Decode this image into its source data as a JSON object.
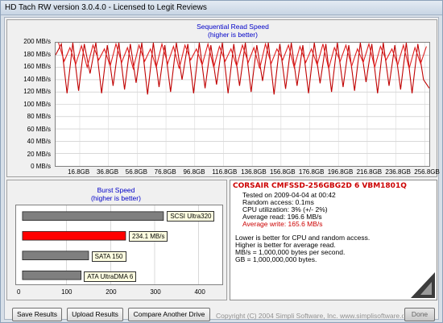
{
  "window": {
    "title": "HD Tach RW version 3.0.4.0 - Licensed to Legit Reviews"
  },
  "read_chart": {
    "title": "Sequential Read Speed",
    "subtitle": "(higher is better)",
    "y_ticks": [
      "200 MB/s",
      "180 MB/s",
      "160 MB/s",
      "140 MB/s",
      "120 MB/s",
      "100 MB/s",
      "80 MB/s",
      "60 MB/s",
      "40 MB/s",
      "20 MB/s",
      "0 MB/s"
    ],
    "x_ticks": [
      "16.8GB",
      "36.8GB",
      "56.8GB",
      "76.8GB",
      "96.8GB",
      "116.8GB",
      "136.8GB",
      "156.8GB",
      "176.8GB",
      "196.8GB",
      "216.8GB",
      "236.8GB",
      "256.8GB"
    ],
    "line_color": "#c00000"
  },
  "burst_chart": {
    "title": "Burst Speed",
    "subtitle": "(higher is better)",
    "x_ticks": [
      "0",
      "100",
      "200",
      "300",
      "400"
    ],
    "tested_color": "#ff0000",
    "reference_color": "#7f7f7f"
  },
  "chart_data": [
    {
      "type": "line",
      "title": "Sequential Read Speed",
      "subtitle": "(higher is better)",
      "xlabel": "",
      "ylabel": "",
      "x_unit": "GB",
      "y_unit": "MB/s",
      "x_ticks": [
        "16.8GB",
        "36.8GB",
        "56.8GB",
        "76.8GB",
        "96.8GB",
        "116.8GB",
        "136.8GB",
        "156.8GB",
        "176.8GB",
        "196.8GB",
        "216.8GB",
        "236.8GB",
        "256.8GB"
      ],
      "ylim": [
        0,
        200
      ],
      "xlim": [
        0,
        260
      ],
      "grid": true,
      "series": [
        {
          "x": [
            0,
            4,
            8,
            12,
            16,
            20,
            24,
            28,
            32,
            36,
            40,
            44,
            48,
            52,
            56,
            60,
            64,
            68,
            72,
            76,
            80,
            84,
            88,
            92,
            96,
            100,
            104,
            108,
            112,
            116,
            120,
            124,
            128,
            132,
            136,
            140,
            144,
            148,
            152,
            156,
            160,
            164,
            168,
            172,
            176,
            180,
            184,
            188,
            192,
            196,
            200,
            204,
            208,
            212,
            216,
            220,
            224,
            228,
            232,
            236,
            240,
            244,
            248,
            252,
            256,
            260
          ],
          "y": [
            180,
            198,
            118,
            200,
            122,
            198,
            150,
            200,
            118,
            196,
            130,
            200,
            124,
            198,
            135,
            200,
            116,
            200,
            128,
            196,
            120,
            200,
            140,
            198,
            118,
            200,
            126,
            196,
            132,
            200,
            118,
            198,
            130,
            200,
            120,
            196,
            138,
            200,
            116,
            198,
            125,
            200,
            130,
            196,
            118,
            200,
            134,
            198,
            120,
            200,
            128,
            196,
            122,
            200,
            136,
            198,
            118,
            200,
            130,
            196,
            124,
            200,
            118,
            198,
            140,
            126
          ]
        },
        {
          "x": [
            2,
            6,
            10,
            14,
            18,
            22,
            26,
            30,
            34,
            38,
            42,
            46,
            50,
            54,
            58,
            62,
            66,
            70,
            74,
            78,
            82,
            86,
            90,
            94,
            98,
            102,
            106,
            110,
            114,
            118,
            122,
            126,
            130,
            134,
            138,
            142,
            146,
            150,
            154,
            158,
            162,
            166,
            170,
            174,
            178,
            182,
            186,
            190,
            194,
            198,
            202,
            206,
            210,
            214,
            218,
            222,
            226,
            230,
            234,
            238,
            242,
            246,
            250,
            254,
            258
          ],
          "y": [
            200,
            170,
            192,
            165,
            195,
            160,
            196,
            172,
            190,
            162,
            198,
            168,
            192,
            158,
            196,
            170,
            190,
            160,
            198,
            166,
            194,
            158,
            196,
            172,
            190,
            164,
            198,
            160,
            194,
            170,
            190,
            162,
            196,
            168,
            192,
            158,
            198,
            166,
            190,
            172,
            196,
            160,
            194,
            168,
            190,
            164,
            198,
            158,
            192,
            170,
            196,
            162,
            190,
            168,
            198,
            160,
            194,
            172,
            190,
            164,
            196,
            158,
            192,
            166,
            194
          ]
        }
      ]
    },
    {
      "type": "bar",
      "orientation": "horizontal",
      "title": "Burst Speed",
      "subtitle": "(higher is better)",
      "categories": [
        "SCSI Ultra320",
        "234.1 MB/s",
        "SATA 150",
        "ATA UltraDMA 6"
      ],
      "values": [
        320,
        234.1,
        150,
        133
      ],
      "xlim": [
        0,
        450
      ],
      "x_ticks": [
        "0",
        "100",
        "200",
        "300",
        "400"
      ],
      "grid": true
    }
  ],
  "info": {
    "drive": "CORSAIR CMFSSD-256GBG2D 6 VBM1801Q",
    "tested": "Tested on 2009-04-04 at 00:42",
    "random_access": "Random access: 0.1ms",
    "cpu": "CPU utilization: 3% (+/- 2%)",
    "avg_read": "Average read: 196.6 MB/s",
    "avg_write": "Average write: 165.6 MB/s",
    "note1": "Lower is better for CPU and random access.",
    "note2": "Higher is better for average read.",
    "note3": "MB/s = 1,000,000 bytes per second.",
    "note4": "GB = 1,000,000,000 bytes.",
    "drive_color": "#cc0000",
    "write_color": "#cc0000"
  },
  "buttons": {
    "save": "Save Results",
    "upload": "Upload Results",
    "compare": "Compare Another Drive",
    "done": "Done"
  },
  "footer": {
    "copyright": "Copyright (C) 2004 Simpli Software, Inc.  www.simplisoftware.com"
  }
}
